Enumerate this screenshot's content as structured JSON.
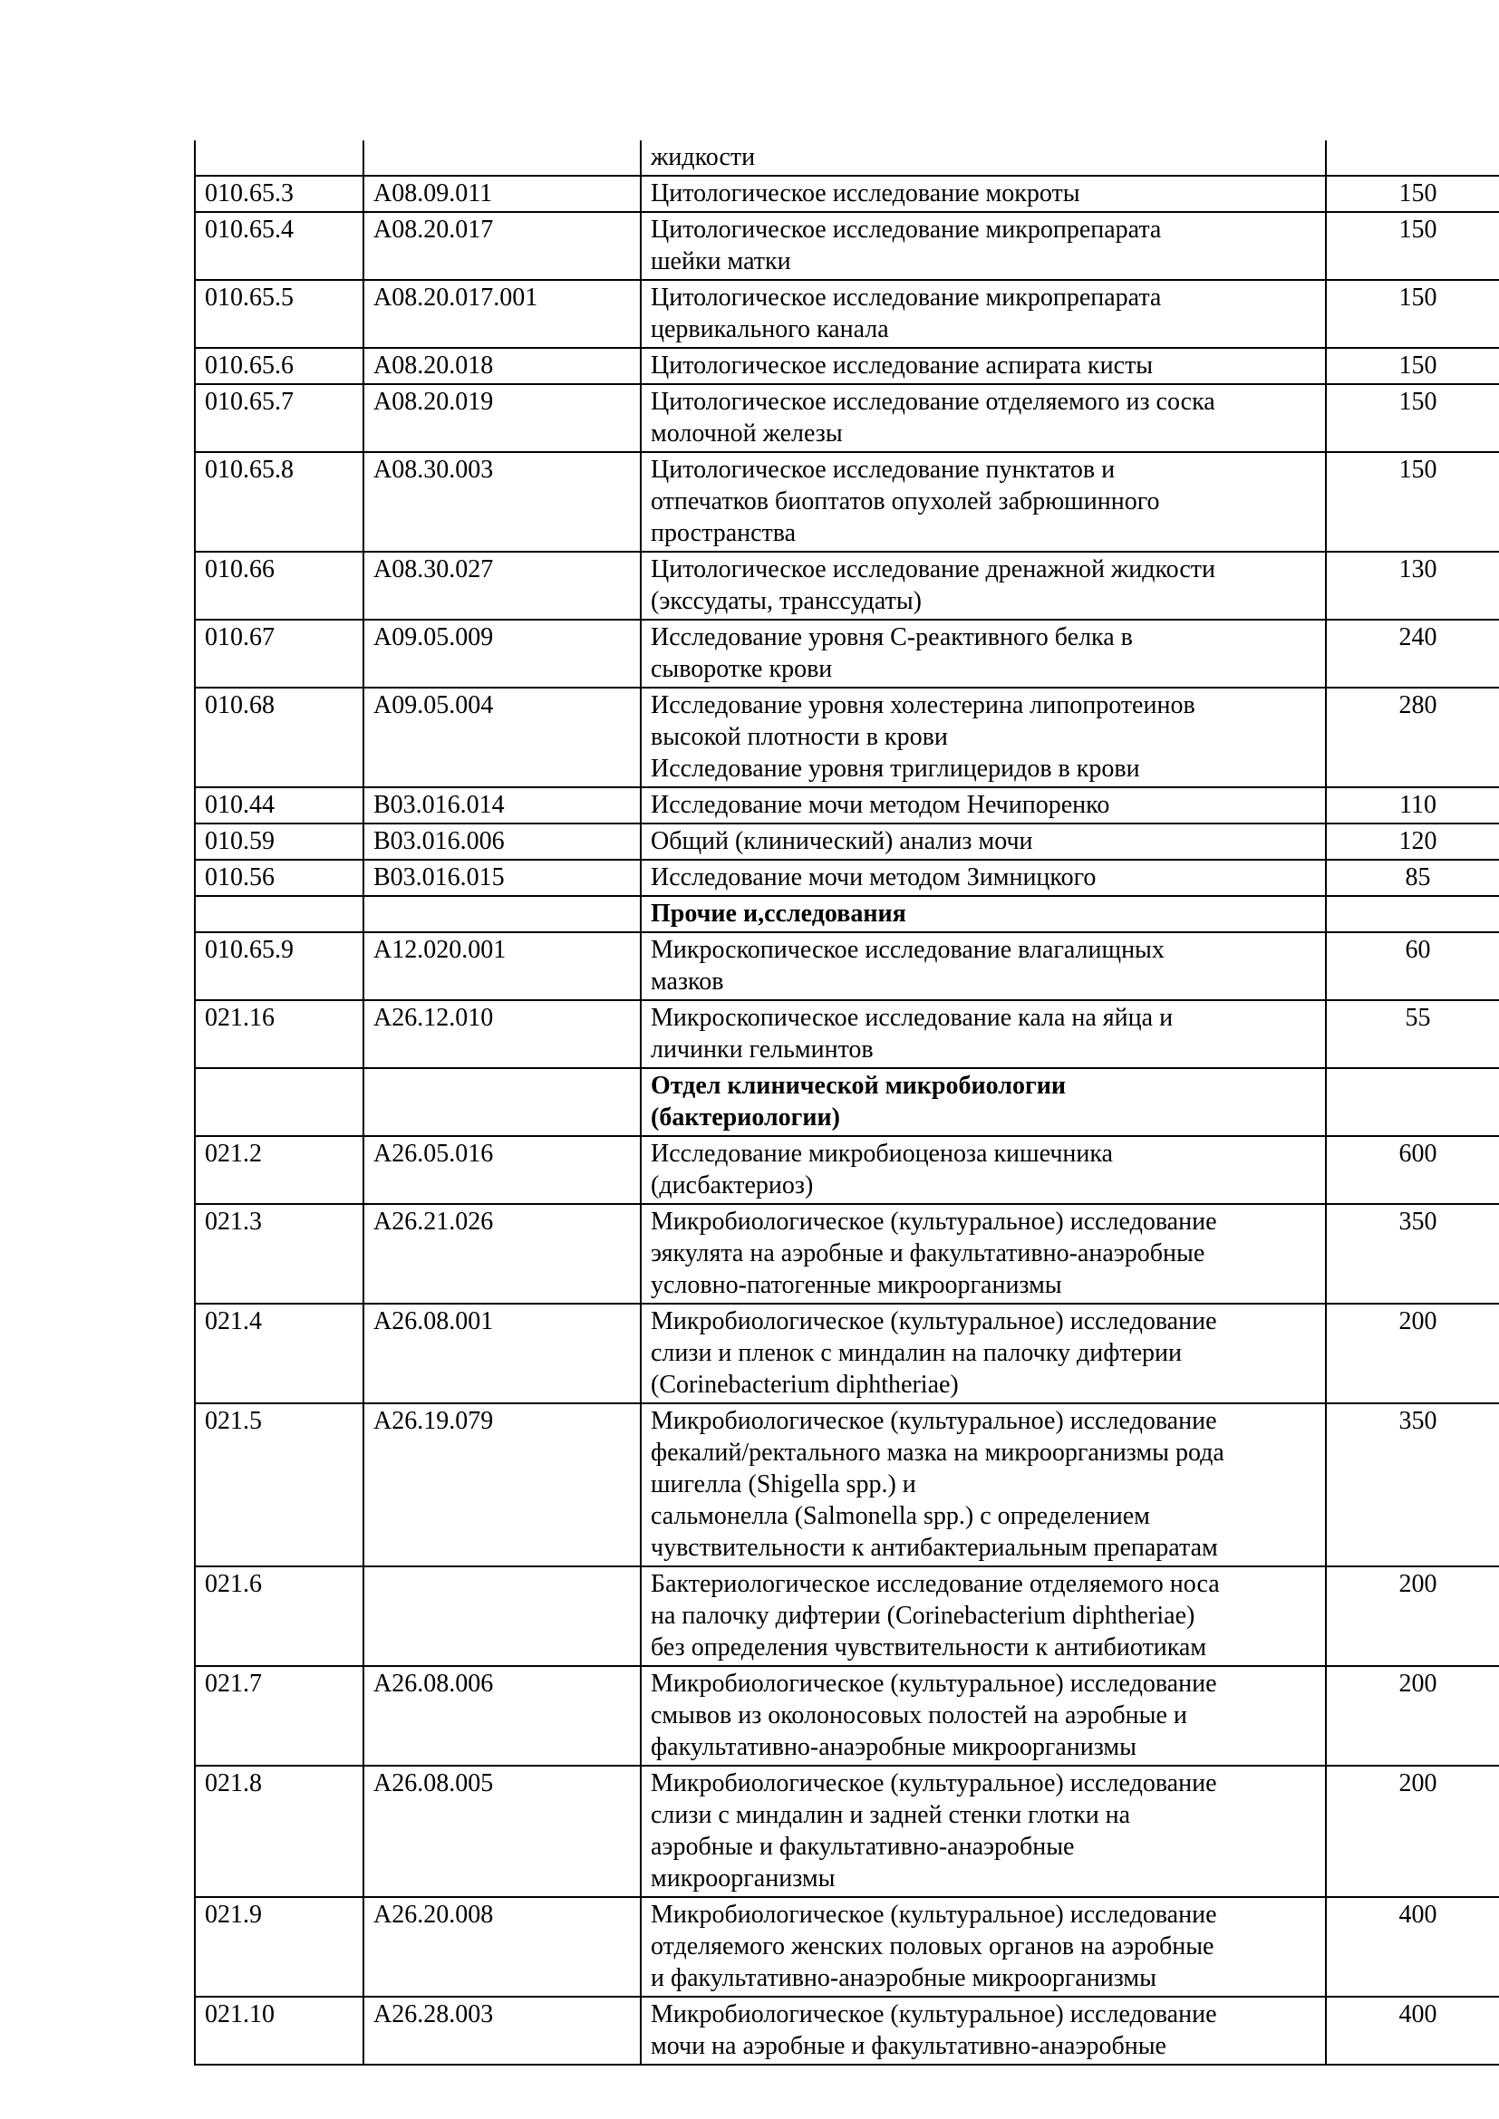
{
  "table": {
    "rows": [
      {
        "code": "",
        "med_code": "",
        "service": "жидкости",
        "price": "",
        "bold": false
      },
      {
        "code": "010.65.3",
        "med_code": "A08.09.011",
        "service": "Цитологическое исследование мокроты",
        "price": "150",
        "bold": false
      },
      {
        "code": "010.65.4",
        "med_code": "A08.20.017",
        "service": "Цитологическое исследование микропрепарата\nшейки матки",
        "price": "150",
        "bold": false
      },
      {
        "code": "010.65.5",
        "med_code": "A08.20.017.001",
        "service": "Цитологическое исследование микропрепарата\nцервикального канала",
        "price": "150",
        "bold": false
      },
      {
        "code": "010.65.6",
        "med_code": "A08.20.018",
        "service": "Цитологическое исследование аспирата кисты",
        "price": "150",
        "bold": false
      },
      {
        "code": "010.65.7",
        "med_code": "A08.20.019",
        "service": "Цитологическое исследование отделяемого из соска\nмолочной железы",
        "price": "150",
        "bold": false
      },
      {
        "code": "010.65.8",
        "med_code": "A08.30.003",
        "service": "Цитологическое исследование пунктатов и\nотпечатков биоптатов опухолей забрюшинного\nпространства",
        "price": "150",
        "bold": false
      },
      {
        "code": "010.66",
        "med_code": "A08.30.027",
        "service": "Цитологическое исследование дренажной жидкости\n(экссудаты, транссудаты)",
        "price": "130",
        "bold": false
      },
      {
        "code": "010.67",
        "med_code": "A09.05.009",
        "service": "Исследование уровня С-реактивного белка в\nсыворотке крови",
        "price": "240",
        "bold": false
      },
      {
        "code": "010.68",
        "med_code": "A09.05.004",
        "service": "Исследование уровня холестерина липопротеинов\nвысокой плотности в крови\nИсследование уровня триглицеридов в крови",
        "price": "280",
        "bold": false
      },
      {
        "code": "010.44",
        "med_code": "B03.016.014",
        "service": "Исследование мочи методом Нечипоренко",
        "price": "110",
        "bold": false
      },
      {
        "code": "010.59",
        "med_code": "B03.016.006",
        "service": "Общий (клинический) анализ мочи",
        "price": "120",
        "bold": false
      },
      {
        "code": "010.56",
        "med_code": "B03.016.015",
        "service": "Исследование мочи методом Зимницкого",
        "price": "85",
        "bold": false
      },
      {
        "code": "",
        "med_code": "",
        "service": "Прочие и,сследования",
        "price": "",
        "bold": true
      },
      {
        "code": "010.65.9",
        "med_code": "A12.020.001",
        "service": "Микроскопическое исследование влагалищных\nмазков",
        "price": "60",
        "bold": false
      },
      {
        "code": "021.16",
        "med_code": "A26.12.010",
        "service": "Микроскопическое исследование кала на яйца и\nличинки гельминтов",
        "price": "55",
        "bold": false
      },
      {
        "code": "",
        "med_code": "",
        "service": "Отдел клинической микробиологии\n(бактериологии)",
        "price": "",
        "bold": true
      },
      {
        "code": "021.2",
        "med_code": "A26.05.016",
        "service": "Исследование микробиоценоза кишечника\n(дисбактериоз)",
        "price": "600",
        "bold": false
      },
      {
        "code": "021.3",
        "med_code": "A26.21.026",
        "service": "Микробиологическое (культуральное) исследование\nэякулята на аэробные и факультативно-анаэробные\nусловно-патогенные микроорганизмы",
        "price": "350",
        "bold": false
      },
      {
        "code": "021.4",
        "med_code": "A26.08.001",
        "service": "Микробиологическое (культуральное) исследование\nслизи и пленок с миндалин на палочку дифтерии\n(Corinebacterium diphtheriae)",
        "price": "200",
        "bold": false
      },
      {
        "code": "021.5",
        "med_code": "A26.19.079",
        "service": "Микробиологическое (культуральное) исследование\nфекалий/ректального мазка на микроорганизмы рода\nшигелла (Shigella spp.) и\nсальмонелла (Salmonella spp.) с определением\nчувствительности к антибактериальным препаратам",
        "price": "350",
        "bold": false
      },
      {
        "code": "021.6",
        "med_code": "",
        "service": "Бактериологическое исследование отделяемого носа\nна палочку дифтерии (Corinebacterium diphtheriae)\nбез определения чувствительности к антибиотикам",
        "price": "200",
        "bold": false
      },
      {
        "code": "021.7",
        "med_code": "A26.08.006",
        "service": "Микробиологическое (культуральное) исследование\nсмывов из околоносовых полостей на аэробные и\nфакультативно-анаэробные микроорганизмы",
        "price": "200",
        "bold": false
      },
      {
        "code": "021.8",
        "med_code": "A26.08.005",
        "service": "Микробиологическое (культуральное) исследование\nслизи с миндалин и задней стенки глотки на\nаэробные и факультативно-анаэробные\nмикроорганизмы",
        "price": "200",
        "bold": false
      },
      {
        "code": "021.9",
        "med_code": "A26.20.008",
        "service": "Микробиологическое (культуральное) исследование\nотделяемого женских половых органов на аэробные\nи факультативно-анаэробные микроорганизмы",
        "price": "400",
        "bold": false
      },
      {
        "code": "021.10",
        "med_code": "A26.28.003",
        "service": "Микробиологическое (культуральное) исследование\nмочи на аэробные и факультативно-анаэробные",
        "price": "400",
        "bold": false
      }
    ]
  }
}
